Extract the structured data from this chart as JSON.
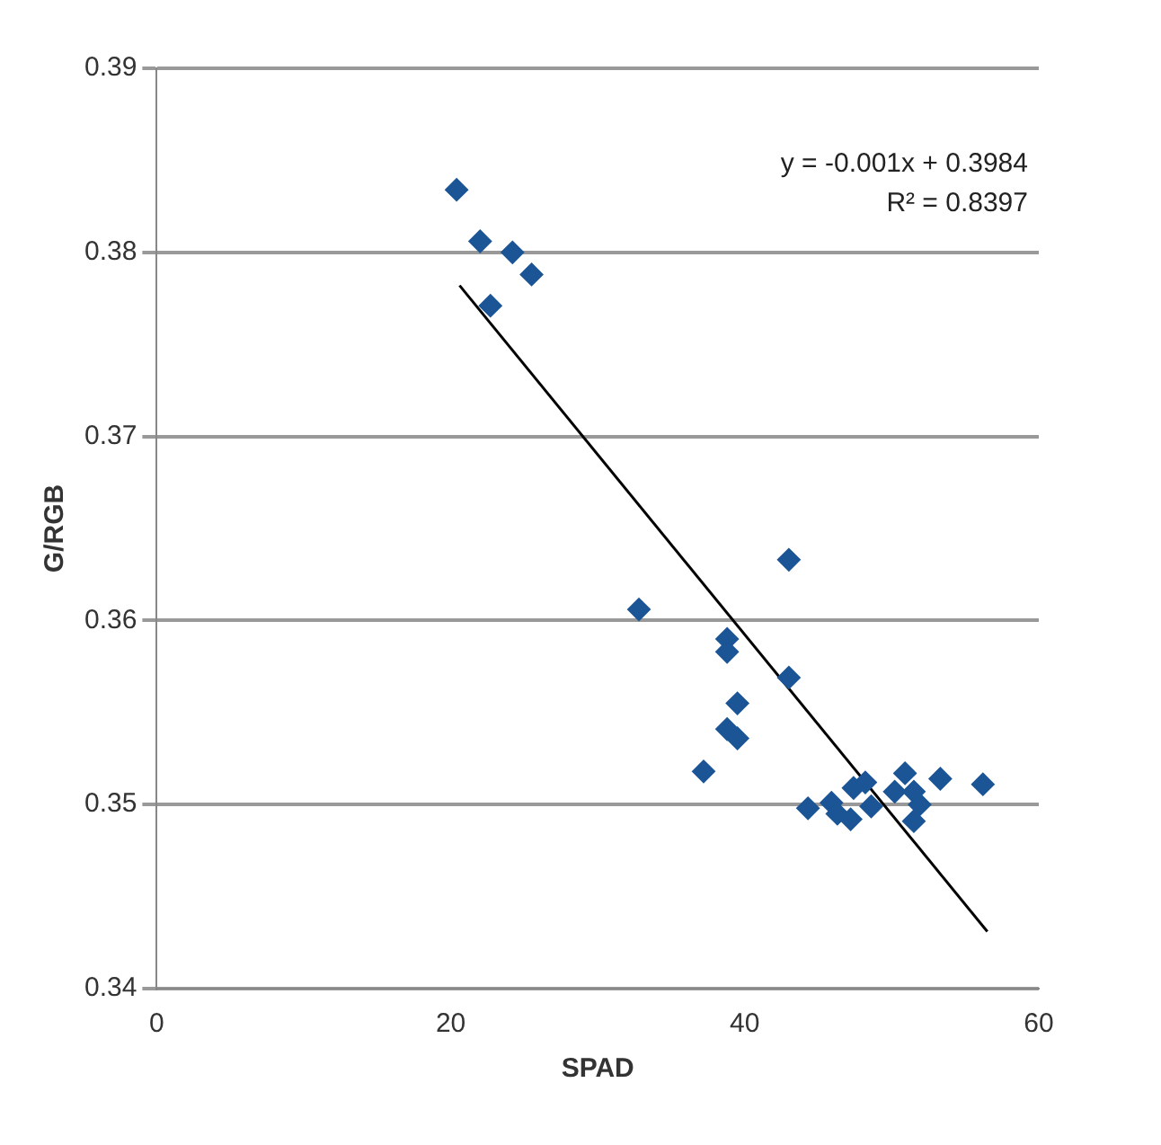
{
  "chart_data": {
    "type": "scatter",
    "xlabel": "SPAD",
    "ylabel": "G/RGB",
    "xlim": [
      0,
      60
    ],
    "xticks": [
      0,
      20,
      40,
      60
    ],
    "ylim": [
      0.34,
      0.39
    ],
    "yticks": [
      0.34,
      0.35,
      0.36,
      0.37,
      0.38,
      0.39
    ],
    "grid": "y",
    "legend": false,
    "annotations": [
      "y = -0.001x + 0.3984",
      "R² = 0.8397"
    ],
    "series": [
      {
        "marker": "diamond",
        "color": "#1b5596",
        "x": [
          20.4,
          22.0,
          24.2,
          25.5,
          22.7,
          43.0,
          32.8,
          38.8,
          38.8,
          43.0,
          39.5,
          38.8,
          39.5,
          37.2,
          44.3,
          45.9,
          46.3,
          47.2,
          47.4,
          48.2,
          48.6,
          50.2,
          50.9,
          51.5,
          51.9,
          51.5,
          53.3,
          56.2
        ],
        "values": [
          0.3834,
          0.3806,
          0.38,
          0.3788,
          0.3771,
          0.3633,
          0.3606,
          0.359,
          0.3583,
          0.3569,
          0.3555,
          0.3541,
          0.3536,
          0.3518,
          0.3498,
          0.3501,
          0.3495,
          0.3492,
          0.3509,
          0.3512,
          0.3499,
          0.3507,
          0.3517,
          0.3507,
          0.35,
          0.3491,
          0.3514,
          0.3511
        ]
      },
      {
        "type": "line",
        "color": "#000000",
        "x": [
          20.6,
          56.5
        ],
        "values": [
          0.3782,
          0.3431
        ]
      }
    ]
  }
}
